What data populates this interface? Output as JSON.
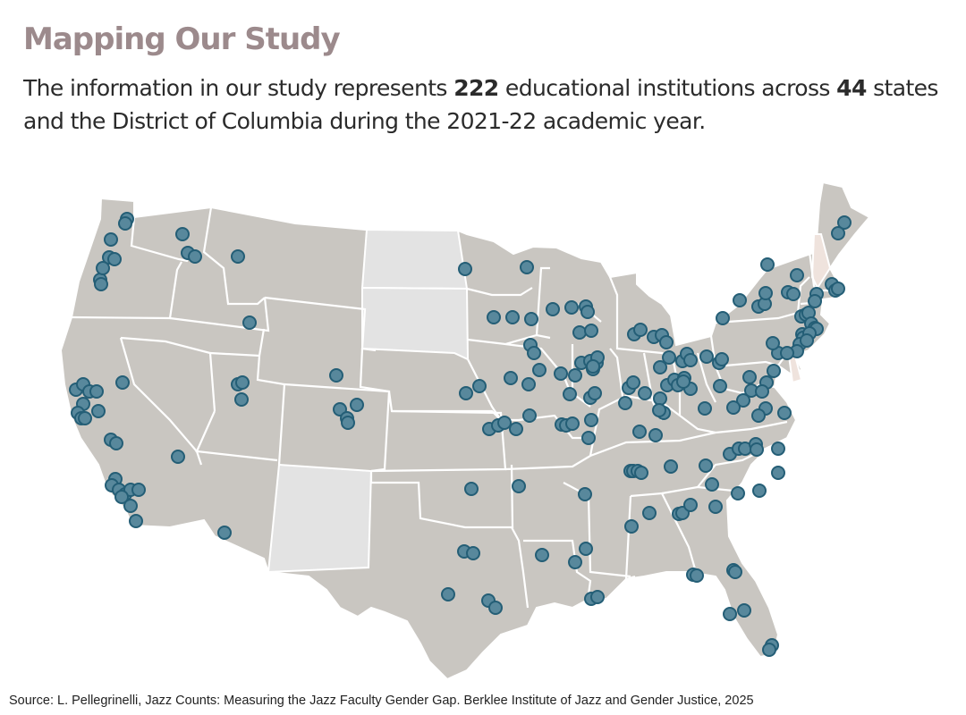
{
  "header": {
    "title": "Mapping Our Study",
    "sentence_part1": "The information in our study represents ",
    "institution_count": "222",
    "sentence_part2": " educational institutions across ",
    "state_count": "44",
    "sentence_part3": " states and the District of Columbia during the 2021-22 academic year."
  },
  "map": {
    "land_color": "#c9c6c1",
    "no_data_color": "#e3e3e3",
    "highlight_color": "#efe3dd",
    "border_color": "#ffffff",
    "dot_fill": "#58889c",
    "dot_stroke": "#245e76",
    "states_without_data": [
      "North Dakota",
      "South Dakota",
      "New Mexico"
    ],
    "states_highlighted": [
      "New Hampshire",
      "Delaware"
    ],
    "institutions_plotted": 222
  },
  "footer": {
    "source": "Source: L. Pellegrinelli, Jazz Counts: Measuring the Jazz Faculty Gender Gap. Berklee Institute of Jazz and Gender Justice, 2025"
  }
}
